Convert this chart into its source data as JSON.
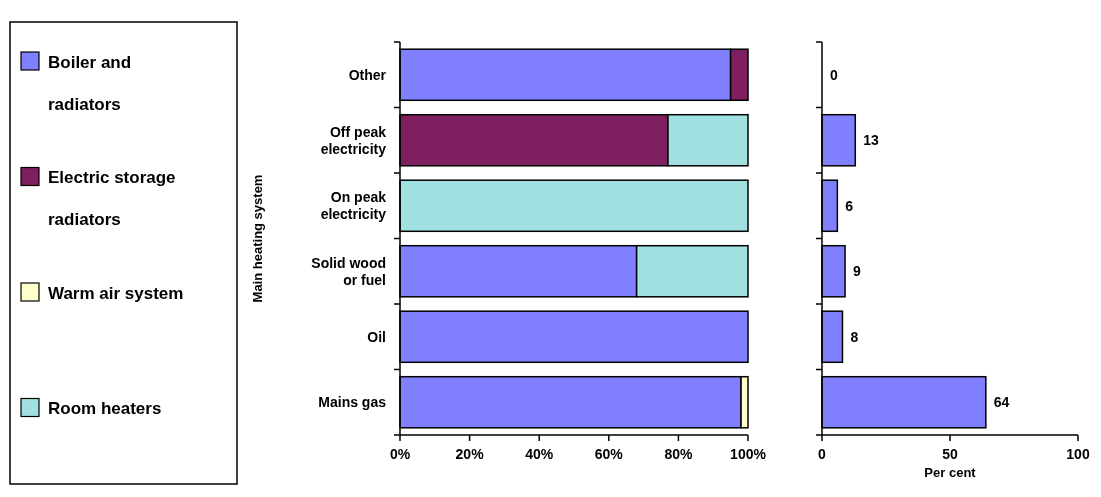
{
  "chart_data": [
    {
      "type": "bar",
      "orientation": "horizontal",
      "stacked": true,
      "ylabel": "Main heating system",
      "legend": "left",
      "categories": [
        "Other",
        "Off peak electricity",
        "On peak electricity",
        "Solid wood or fuel",
        "Oil",
        "Mains gas"
      ],
      "series": [
        {
          "name": "Boiler and radiators",
          "color": "#8080ff",
          "values": [
            95,
            0,
            0,
            68,
            100,
            98
          ]
        },
        {
          "name": "Electric storage radiators",
          "color": "#7f1f5f",
          "values": [
            5,
            77,
            0,
            0,
            0,
            0
          ]
        },
        {
          "name": "Warm air system",
          "color": "#ffffcc",
          "values": [
            0,
            0,
            0,
            0,
            0,
            2
          ]
        },
        {
          "name": "Room heaters",
          "color": "#a0e0e0",
          "values": [
            0,
            23,
            100,
            32,
            0,
            0
          ]
        }
      ],
      "xlim": [
        0,
        100
      ],
      "xticks": [
        {
          "value": 0,
          "label": "0%"
        },
        {
          "value": 20,
          "label": "20%"
        },
        {
          "value": 40,
          "label": "40%"
        },
        {
          "value": 60,
          "label": "60%"
        },
        {
          "value": 80,
          "label": "80%"
        },
        {
          "value": 100,
          "label": "100%"
        }
      ]
    },
    {
      "type": "bar",
      "orientation": "horizontal",
      "xlabel": "Per cent",
      "tick_labels": "x",
      "data_labels": true,
      "categories": [
        null,
        null,
        null,
        null,
        null,
        null
      ],
      "values": [
        0,
        13,
        6,
        9,
        8,
        64
      ],
      "color": "#8080ff",
      "xlim": [
        0,
        100
      ],
      "xticks": [
        0,
        50,
        100
      ]
    }
  ]
}
